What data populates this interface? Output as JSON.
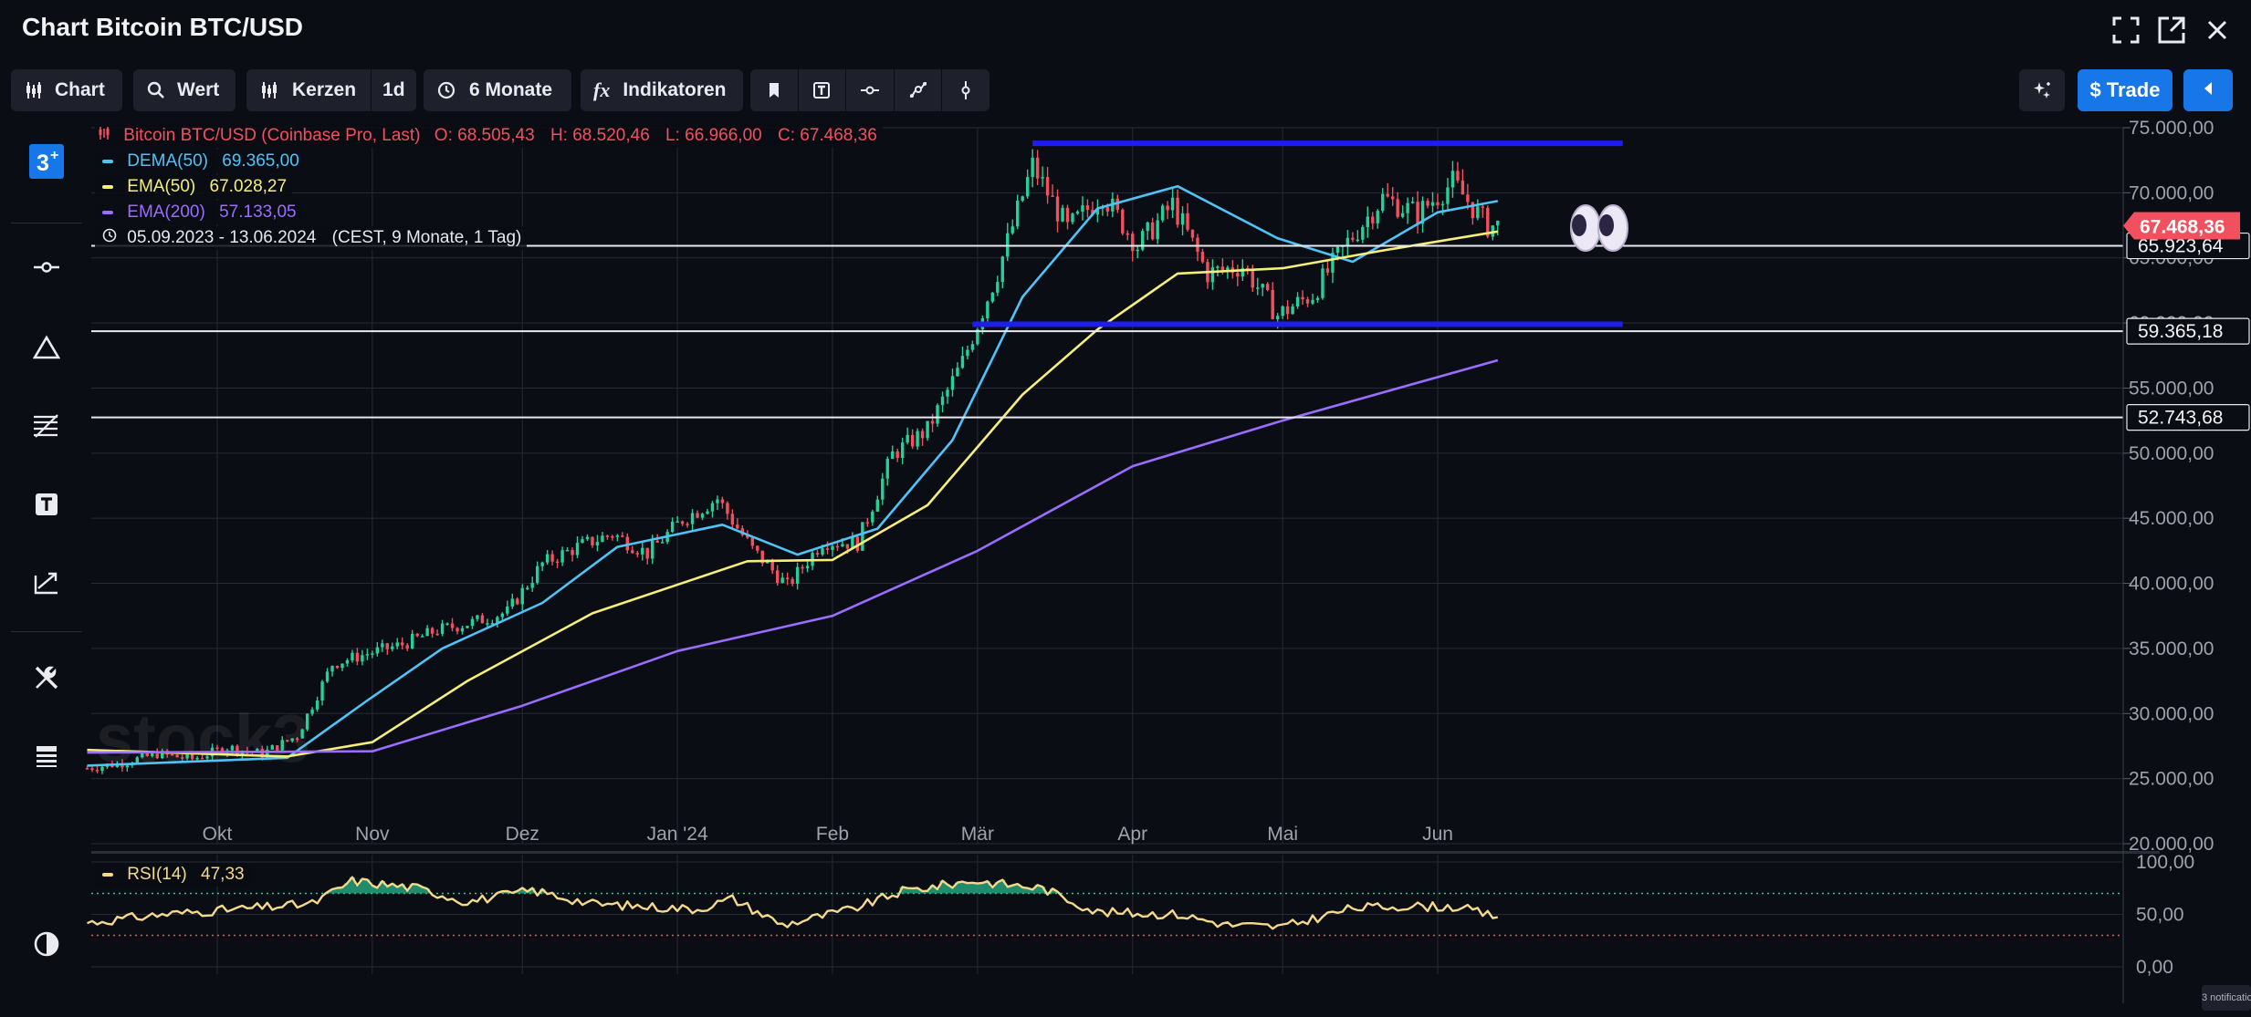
{
  "window": {
    "title": "Chart Bitcoin BTC/USD"
  },
  "toolbar": {
    "chart_label": "Chart",
    "value_label": "Wert",
    "candles_label": "Kerzen",
    "interval_label": "1d",
    "range_label": "6 Monate",
    "indicators_label": "Indikatoren",
    "trade_label": "Trade"
  },
  "legend": {
    "instrument": "Bitcoin BTC/USD (Coinbase Pro, Last)",
    "open": "O: 68.505,43",
    "high": "H: 68.520,46",
    "low": "L: 66.966,00",
    "close": "C: 67.468,36",
    "dema_name": "DEMA(50)",
    "dema_value": "69.365,00",
    "ema50_name": "EMA(50)",
    "ema50_value": "67.028,27",
    "ema200_name": "EMA(200)",
    "ema200_value": "57.133,05",
    "period": "05.09.2023 - 13.06.2024",
    "period_info": "(CEST, 9 Monate, 1 Tag)"
  },
  "rsi_legend": {
    "name": "RSI(14)",
    "value": "47,33"
  },
  "watermark": "stock3",
  "notification": "3 notifications",
  "colors": {
    "background": "#0b0d14",
    "toolbar": "#1e212b",
    "accent": "#1877e8",
    "up": "#26d09a",
    "down": "#f2505e",
    "dema": "#4fc3f7",
    "ema50": "#f5ef7a",
    "ema200": "#9b6dff",
    "zone": "#1f1cf2",
    "price_badge": "#f2505e"
  },
  "chart_data": [
    {
      "type": "candlestick",
      "title": "Chart Bitcoin BTC/USD",
      "x_range": [
        "2023-09-05",
        "2024-06-13"
      ],
      "x_ticks": [
        {
          "date": "2023-10-01",
          "label": "Okt"
        },
        {
          "date": "2023-11-01",
          "label": "Nov"
        },
        {
          "date": "2023-12-01",
          "label": "Dez"
        },
        {
          "date": "2024-01-01",
          "label": "Jan '24"
        },
        {
          "date": "2024-02-01",
          "label": "Feb"
        },
        {
          "date": "2024-03-01",
          "label": "Mär"
        },
        {
          "date": "2024-04-01",
          "label": "Apr"
        },
        {
          "date": "2024-05-01",
          "label": "Mai"
        },
        {
          "date": "2024-06-01",
          "label": "Jun"
        }
      ],
      "ylim": [
        20000,
        75000
      ],
      "y_ticks": [
        {
          "value": 20000,
          "label": "20.000,00"
        },
        {
          "value": 25000,
          "label": "25.000,00"
        },
        {
          "value": 30000,
          "label": "30.000,00"
        },
        {
          "value": 35000,
          "label": "35.000,00"
        },
        {
          "value": 40000,
          "label": "40.000,00"
        },
        {
          "value": 45000,
          "label": "45.000,00"
        },
        {
          "value": 50000,
          "label": "50.000,00"
        },
        {
          "value": 55000,
          "label": "55.000,00"
        },
        {
          "value": 60000,
          "label": "60.000,00"
        },
        {
          "value": 65000,
          "label": "65.000,00"
        },
        {
          "value": 70000,
          "label": "70.000,00"
        },
        {
          "value": 75000,
          "label": "75.000,00"
        }
      ],
      "grid": true,
      "close_series_weekly": [
        {
          "x": "2023-09-05",
          "y": 25800
        },
        {
          "x": "2023-09-12",
          "y": 26200
        },
        {
          "x": "2023-09-19",
          "y": 26900
        },
        {
          "x": "2023-09-26",
          "y": 26500
        },
        {
          "x": "2023-10-03",
          "y": 27400
        },
        {
          "x": "2023-10-10",
          "y": 26900
        },
        {
          "x": "2023-10-17",
          "y": 28300
        },
        {
          "x": "2023-10-24",
          "y": 33800
        },
        {
          "x": "2023-10-31",
          "y": 34600
        },
        {
          "x": "2023-11-07",
          "y": 35300
        },
        {
          "x": "2023-11-14",
          "y": 36400
        },
        {
          "x": "2023-11-21",
          "y": 37000
        },
        {
          "x": "2023-11-28",
          "y": 37800
        },
        {
          "x": "2023-12-05",
          "y": 41500
        },
        {
          "x": "2023-12-12",
          "y": 42800
        },
        {
          "x": "2023-12-19",
          "y": 43800
        },
        {
          "x": "2023-12-26",
          "y": 42300
        },
        {
          "x": "2024-01-02",
          "y": 44900
        },
        {
          "x": "2024-01-09",
          "y": 46500
        },
        {
          "x": "2024-01-16",
          "y": 42600
        },
        {
          "x": "2024-01-23",
          "y": 39800
        },
        {
          "x": "2024-01-30",
          "y": 43200
        },
        {
          "x": "2024-02-06",
          "y": 43100
        },
        {
          "x": "2024-02-13",
          "y": 49900
        },
        {
          "x": "2024-02-20",
          "y": 51800
        },
        {
          "x": "2024-02-27",
          "y": 57000
        },
        {
          "x": "2024-03-05",
          "y": 63900
        },
        {
          "x": "2024-03-12",
          "y": 72100
        },
        {
          "x": "2024-03-19",
          "y": 67200
        },
        {
          "x": "2024-03-26",
          "y": 69900
        },
        {
          "x": "2024-04-02",
          "y": 65900
        },
        {
          "x": "2024-04-09",
          "y": 69100
        },
        {
          "x": "2024-04-16",
          "y": 63800
        },
        {
          "x": "2024-04-23",
          "y": 64400
        },
        {
          "x": "2024-04-30",
          "y": 60600
        },
        {
          "x": "2024-05-07",
          "y": 62200
        },
        {
          "x": "2024-05-14",
          "y": 66200
        },
        {
          "x": "2024-05-21",
          "y": 69600
        },
        {
          "x": "2024-05-28",
          "y": 68400
        },
        {
          "x": "2024-06-04",
          "y": 70800
        },
        {
          "x": "2024-06-11",
          "y": 67468
        }
      ],
      "series": [
        {
          "name": "DEMA(50)",
          "points": [
            {
              "x": "2023-09-05",
              "y": 26000
            },
            {
              "x": "2023-10-15",
              "y": 26600
            },
            {
              "x": "2023-10-31",
              "y": 31000
            },
            {
              "x": "2023-11-15",
              "y": 35000
            },
            {
              "x": "2023-12-05",
              "y": 38500
            },
            {
              "x": "2023-12-20",
              "y": 42800
            },
            {
              "x": "2024-01-10",
              "y": 44500
            },
            {
              "x": "2024-01-25",
              "y": 42200
            },
            {
              "x": "2024-02-10",
              "y": 44200
            },
            {
              "x": "2024-02-25",
              "y": 51000
            },
            {
              "x": "2024-03-10",
              "y": 62000
            },
            {
              "x": "2024-03-25",
              "y": 68800
            },
            {
              "x": "2024-04-10",
              "y": 70500
            },
            {
              "x": "2024-04-30",
              "y": 66500
            },
            {
              "x": "2024-05-15",
              "y": 64700
            },
            {
              "x": "2024-06-01",
              "y": 68500
            },
            {
              "x": "2024-06-13",
              "y": 69365
            }
          ]
        },
        {
          "name": "EMA(50)",
          "points": [
            {
              "x": "2023-09-05",
              "y": 27200
            },
            {
              "x": "2023-10-15",
              "y": 26700
            },
            {
              "x": "2023-11-01",
              "y": 27800
            },
            {
              "x": "2023-11-20",
              "y": 32500
            },
            {
              "x": "2023-12-15",
              "y": 37700
            },
            {
              "x": "2024-01-15",
              "y": 41700
            },
            {
              "x": "2024-02-01",
              "y": 41800
            },
            {
              "x": "2024-02-20",
              "y": 46000
            },
            {
              "x": "2024-03-10",
              "y": 54500
            },
            {
              "x": "2024-03-25",
              "y": 59500
            },
            {
              "x": "2024-04-10",
              "y": 63800
            },
            {
              "x": "2024-05-01",
              "y": 64200
            },
            {
              "x": "2024-05-20",
              "y": 65500
            },
            {
              "x": "2024-06-13",
              "y": 67028
            }
          ]
        },
        {
          "name": "EMA(200)",
          "points": [
            {
              "x": "2023-09-05",
              "y": 27000
            },
            {
              "x": "2023-11-01",
              "y": 27100
            },
            {
              "x": "2023-12-01",
              "y": 30600
            },
            {
              "x": "2024-01-01",
              "y": 34800
            },
            {
              "x": "2024-02-01",
              "y": 37500
            },
            {
              "x": "2024-03-01",
              "y": 42500
            },
            {
              "x": "2024-04-01",
              "y": 49000
            },
            {
              "x": "2024-05-01",
              "y": 52500
            },
            {
              "x": "2024-06-13",
              "y": 57133
            }
          ]
        }
      ],
      "horizontal_lines": [
        {
          "value": 65923.64,
          "label": "65.923,64"
        },
        {
          "value": 59365.18,
          "label": "59.365,18"
        },
        {
          "value": 52743.68,
          "label": "52.743,68"
        }
      ],
      "zone_lines": [
        {
          "value": 73800,
          "from": "2024-03-12",
          "to": "2024-07-08"
        },
        {
          "value": 59900,
          "from": "2024-02-29",
          "to": "2024-07-08"
        }
      ],
      "last_price": {
        "value": 67468.36,
        "label": "67.468,36"
      }
    },
    {
      "type": "line",
      "title": "RSI(14)",
      "ylim": [
        0,
        100
      ],
      "y_ticks": [
        {
          "value": 0,
          "label": "0,00"
        },
        {
          "value": 50,
          "label": "50,00"
        },
        {
          "value": 100,
          "label": "100,00"
        }
      ],
      "levels": [
        70,
        30
      ],
      "series": [
        {
          "name": "RSI(14)",
          "points": [
            {
              "x": "2023-09-05",
              "y": 42
            },
            {
              "x": "2023-09-20",
              "y": 50
            },
            {
              "x": "2023-10-05",
              "y": 55
            },
            {
              "x": "2023-10-20",
              "y": 60
            },
            {
              "x": "2023-10-28",
              "y": 82
            },
            {
              "x": "2023-11-10",
              "y": 75
            },
            {
              "x": "2023-11-20",
              "y": 62
            },
            {
              "x": "2023-12-03",
              "y": 73
            },
            {
              "x": "2023-12-15",
              "y": 60
            },
            {
              "x": "2024-01-05",
              "y": 55
            },
            {
              "x": "2024-01-12",
              "y": 65
            },
            {
              "x": "2024-01-22",
              "y": 40
            },
            {
              "x": "2024-02-05",
              "y": 55
            },
            {
              "x": "2024-02-15",
              "y": 72
            },
            {
              "x": "2024-02-29",
              "y": 82
            },
            {
              "x": "2024-03-14",
              "y": 75
            },
            {
              "x": "2024-03-25",
              "y": 52
            },
            {
              "x": "2024-04-10",
              "y": 50
            },
            {
              "x": "2024-04-20",
              "y": 40
            },
            {
              "x": "2024-05-01",
              "y": 38
            },
            {
              "x": "2024-05-15",
              "y": 56
            },
            {
              "x": "2024-05-25",
              "y": 58
            },
            {
              "x": "2024-06-05",
              "y": 57
            },
            {
              "x": "2024-06-13",
              "y": 47.33
            }
          ]
        }
      ]
    }
  ]
}
